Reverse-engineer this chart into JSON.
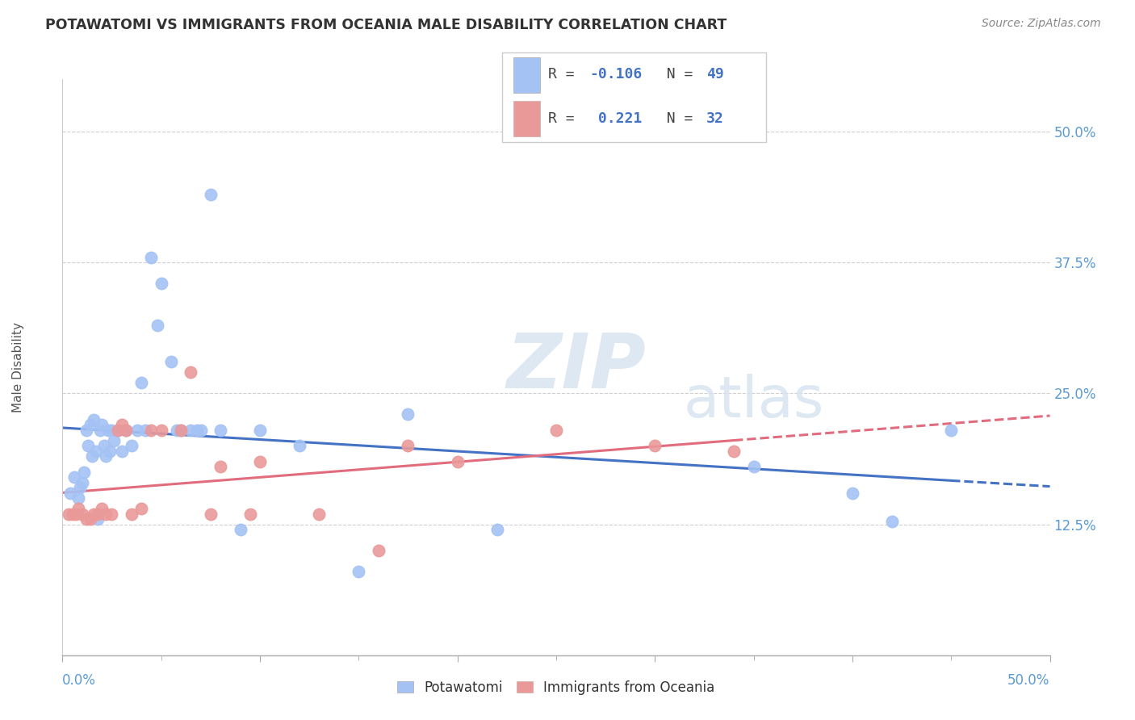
{
  "title": "POTAWATOMI VS IMMIGRANTS FROM OCEANIA MALE DISABILITY CORRELATION CHART",
  "source": "Source: ZipAtlas.com",
  "ylabel": "Male Disability",
  "ytick_labels": [
    "12.5%",
    "25.0%",
    "37.5%",
    "50.0%"
  ],
  "ytick_values": [
    0.125,
    0.25,
    0.375,
    0.5
  ],
  "xlim": [
    0.0,
    0.5
  ],
  "ylim": [
    0.0,
    0.55
  ],
  "legend_blue_r": "-0.106",
  "legend_blue_n": "49",
  "legend_pink_r": "0.221",
  "legend_pink_n": "32",
  "legend_label1": "Potawatomi",
  "legend_label2": "Immigrants from Oceania",
  "blue_color": "#a4c2f4",
  "pink_color": "#ea9999",
  "blue_line_color": "#4472c4",
  "pink_line_color": "#e06c7e",
  "watermark_zip": "ZIP",
  "watermark_atlas": "atlas",
  "blue_x": [
    0.004,
    0.006,
    0.008,
    0.009,
    0.01,
    0.011,
    0.012,
    0.013,
    0.014,
    0.015,
    0.016,
    0.017,
    0.018,
    0.019,
    0.02,
    0.021,
    0.022,
    0.023,
    0.024,
    0.025,
    0.026,
    0.028,
    0.03,
    0.032,
    0.035,
    0.038,
    0.04,
    0.042,
    0.045,
    0.048,
    0.05,
    0.055,
    0.058,
    0.06,
    0.065,
    0.068,
    0.07,
    0.075,
    0.08,
    0.09,
    0.1,
    0.12,
    0.15,
    0.175,
    0.22,
    0.35,
    0.4,
    0.42,
    0.45
  ],
  "blue_y": [
    0.155,
    0.17,
    0.15,
    0.16,
    0.165,
    0.175,
    0.215,
    0.2,
    0.22,
    0.19,
    0.225,
    0.195,
    0.13,
    0.215,
    0.22,
    0.2,
    0.19,
    0.215,
    0.195,
    0.215,
    0.205,
    0.215,
    0.195,
    0.215,
    0.2,
    0.215,
    0.26,
    0.215,
    0.38,
    0.315,
    0.355,
    0.28,
    0.215,
    0.215,
    0.215,
    0.215,
    0.215,
    0.44,
    0.215,
    0.12,
    0.215,
    0.2,
    0.08,
    0.23,
    0.12,
    0.18,
    0.155,
    0.128,
    0.215
  ],
  "pink_x": [
    0.003,
    0.005,
    0.007,
    0.008,
    0.01,
    0.012,
    0.014,
    0.016,
    0.018,
    0.02,
    0.022,
    0.025,
    0.028,
    0.03,
    0.032,
    0.035,
    0.04,
    0.045,
    0.05,
    0.06,
    0.065,
    0.075,
    0.08,
    0.095,
    0.1,
    0.13,
    0.16,
    0.175,
    0.2,
    0.25,
    0.3,
    0.34
  ],
  "pink_y": [
    0.135,
    0.135,
    0.135,
    0.14,
    0.135,
    0.13,
    0.13,
    0.135,
    0.135,
    0.14,
    0.135,
    0.135,
    0.215,
    0.22,
    0.215,
    0.135,
    0.14,
    0.215,
    0.215,
    0.215,
    0.27,
    0.135,
    0.18,
    0.135,
    0.185,
    0.135,
    0.1,
    0.2,
    0.185,
    0.215,
    0.2,
    0.195
  ]
}
